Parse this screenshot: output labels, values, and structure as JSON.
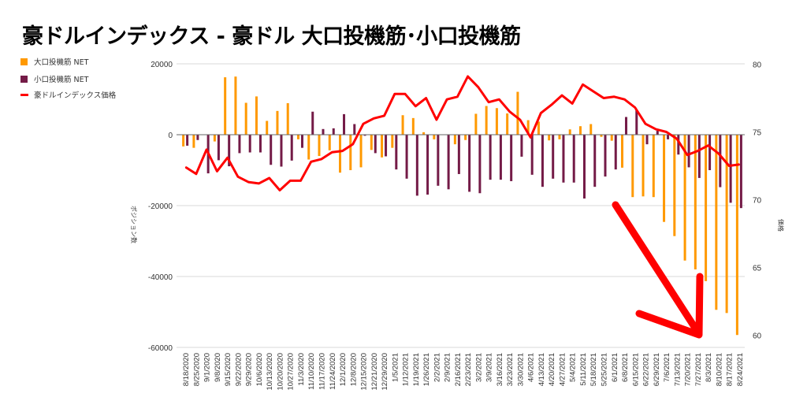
{
  "title": "豪ドルインデックス - 豪ドル 大口投機筋･小口投機筋",
  "colors": {
    "large": "#ff9900",
    "small": "#741b47",
    "price": "#ff0000",
    "arrow": "#ff0000",
    "grid": "#d9d9d9"
  },
  "chart_data": {
    "type": "bar+line",
    "title": "豪ドルインデックス - 豪ドル 大口投機筋･小口投機筋",
    "xlabel": "",
    "ylabel": "ポジション数",
    "y2label": "価格",
    "ylim": [
      -60000,
      20000
    ],
    "y2lim": [
      60,
      80
    ],
    "yticks": [
      "20000",
      "0",
      "-20000",
      "-40000",
      "-60000"
    ],
    "y2ticks": [
      "80",
      "75",
      "70",
      "65",
      "60"
    ],
    "grid": true,
    "legend": "top-left",
    "categories": [
      "8/18/2020",
      "8/25/2020",
      "9/1/2020",
      "9/8/2020",
      "9/15/2020",
      "9/22/2020",
      "9/29/2020",
      "10/6/2020",
      "10/13/2020",
      "10/20/2020",
      "10/27/2020",
      "11/3/2020",
      "11/10/2020",
      "11/17/2020",
      "11/24/2020",
      "12/1/2020",
      "12/8/2020",
      "12/15/2020",
      "12/21/2020",
      "12/29/2020",
      "1/5/2021",
      "1/12/2021",
      "1/19/2021",
      "1/26/2021",
      "2/2/2021",
      "2/9/2021",
      "2/16/2021",
      "2/23/2021",
      "3/2/2021",
      "3/9/2021",
      "3/16/2021",
      "3/23/2021",
      "3/30/2021",
      "4/6/2021",
      "4/13/2021",
      "4/20/2021",
      "4/27/2021",
      "5/4/2021",
      "5/11/2021",
      "5/18/2021",
      "5/25/2021",
      "6/1/2021",
      "6/8/2021",
      "6/15/2021",
      "6/22/2021",
      "6/29/2021",
      "7/6/2021",
      "7/13/2021",
      "7/20/2021",
      "7/27/2021",
      "8/3/2021",
      "8/10/2021",
      "8/17/2021",
      "8/24/2021"
    ],
    "series": [
      {
        "name": "大口投機筋  NET",
        "type": "bar",
        "axis": "left",
        "values": [
          -3300,
          -3700,
          0,
          -1900,
          16200,
          16400,
          9000,
          10800,
          3900,
          6700,
          8900,
          -1300,
          -7000,
          -6000,
          -4400,
          -10700,
          -10000,
          -9200,
          -4300,
          -6400,
          -3700,
          5500,
          4700,
          700,
          -1300,
          100,
          -2700,
          -1500,
          5900,
          8100,
          7500,
          6000,
          12100,
          4100,
          3700,
          -1600,
          -1300,
          1500,
          2400,
          3000,
          -600,
          -1700,
          -9300,
          -17600,
          -17400,
          -17600,
          -24600,
          -28600,
          -35500,
          -38000,
          -41300,
          -49400,
          -50300,
          -56500
        ]
      },
      {
        "name": "小口投機筋  NET",
        "type": "bar",
        "axis": "left",
        "values": [
          -3100,
          -1500,
          -10900,
          -7200,
          -8900,
          -5200,
          -5000,
          -5000,
          -8500,
          -9000,
          -7300,
          -3700,
          6500,
          1600,
          1800,
          5800,
          3000,
          -300,
          -5200,
          -6100,
          -9800,
          -12400,
          -17200,
          -16900,
          -14400,
          -15400,
          -11100,
          -16100,
          -16500,
          -12700,
          -12700,
          -13100,
          -6200,
          -11300,
          -14700,
          -12400,
          -13500,
          -13500,
          -18000,
          -14700,
          -11800,
          -9800,
          5000,
          7000,
          -2700,
          1100,
          -1300,
          -5600,
          -9200,
          -12200,
          -10000,
          -14800,
          -19200,
          -20700
        ]
      },
      {
        "name": "豪ドルインデックス価格",
        "type": "line",
        "axis": "right",
        "values": [
          72.4,
          71.9,
          73.7,
          72.1,
          73.1,
          71.7,
          71.3,
          71.2,
          71.6,
          70.7,
          71.4,
          71.4,
          72.8,
          73.0,
          73.5,
          73.6,
          74.1,
          75.6,
          76.0,
          76.2,
          77.8,
          77.8,
          76.9,
          77.5,
          75.9,
          77.4,
          77.6,
          79.1,
          78.3,
          77.2,
          77.4,
          76.5,
          75.9,
          74.6,
          76.4,
          77.0,
          77.7,
          77.1,
          78.5,
          78.0,
          77.5,
          77.6,
          77.4,
          76.8,
          75.6,
          75.2,
          75.0,
          74.5,
          73.3,
          73.6,
          74.0,
          73.4,
          72.5,
          72.6
        ]
      }
    ],
    "annotations": [
      "red-down-arrow"
    ]
  }
}
